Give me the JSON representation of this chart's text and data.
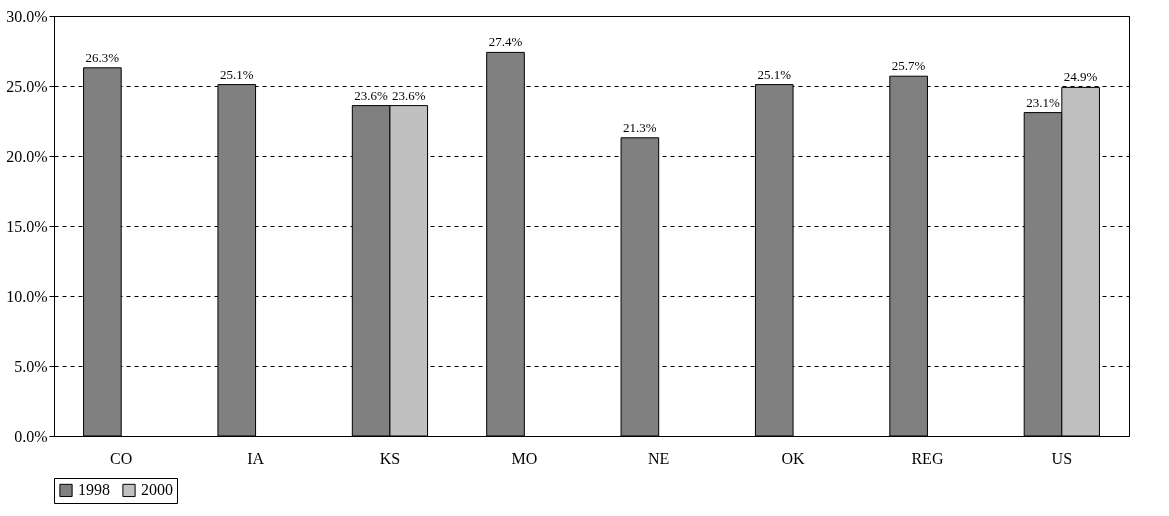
{
  "chart_data": {
    "type": "bar",
    "categories": [
      "CO",
      "IA",
      "KS",
      "MO",
      "NE",
      "OK",
      "REG",
      "US"
    ],
    "series": [
      {
        "name": "1998",
        "color": "#808080",
        "values": [
          26.3,
          25.1,
          23.6,
          27.4,
          21.3,
          25.1,
          25.7,
          23.1
        ],
        "value_labels": [
          "26.3%",
          "25.1%",
          "23.6%",
          "27.4%",
          "21.3%",
          "25.1%",
          "25.7%",
          "23.1%"
        ]
      },
      {
        "name": "2000",
        "color": "#c0c0c0",
        "values": [
          null,
          null,
          23.6,
          null,
          null,
          null,
          null,
          24.9
        ],
        "value_labels": [
          null,
          null,
          "23.6%",
          null,
          null,
          null,
          null,
          "24.9%"
        ]
      }
    ],
    "ylim": [
      0,
      30
    ],
    "yticks": [
      {
        "value": 0,
        "label": "0.0%"
      },
      {
        "value": 5,
        "label": "5.0%"
      },
      {
        "value": 10,
        "label": "10.0%"
      },
      {
        "value": 15,
        "label": "15.0%"
      },
      {
        "value": 20,
        "label": "20.0%"
      },
      {
        "value": 25,
        "label": "25.0%"
      },
      {
        "value": 30,
        "label": "30.0%"
      }
    ],
    "grid": "y",
    "legend": "bottom"
  }
}
